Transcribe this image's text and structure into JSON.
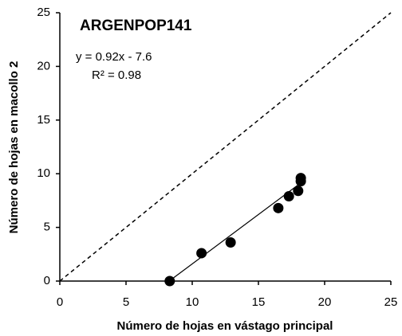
{
  "chart_data": {
    "type": "scatter",
    "title": "ARGENPOP141",
    "equation": "y = 0.92x - 7.6",
    "r_squared": "R² = 0.98",
    "x_label": "Número de hojas en vástago principal",
    "y_label": "Número de hojas en macollo 2",
    "x": [
      8.3,
      10.7,
      12.9,
      16.5,
      17.3,
      18.0,
      18.2,
      18.2
    ],
    "y": [
      0,
      2.6,
      3.6,
      6.8,
      7.9,
      8.4,
      9.3,
      9.6
    ],
    "color": "#000000",
    "fit": {
      "slope": 0.92,
      "intercept": -7.6
    },
    "identity_line": true,
    "xlim": [
      0,
      25
    ],
    "ylim": [
      0,
      25
    ],
    "xticks": [
      0,
      5,
      10,
      15,
      20,
      25
    ],
    "yticks": [
      0,
      5,
      10,
      15,
      20,
      25
    ]
  }
}
